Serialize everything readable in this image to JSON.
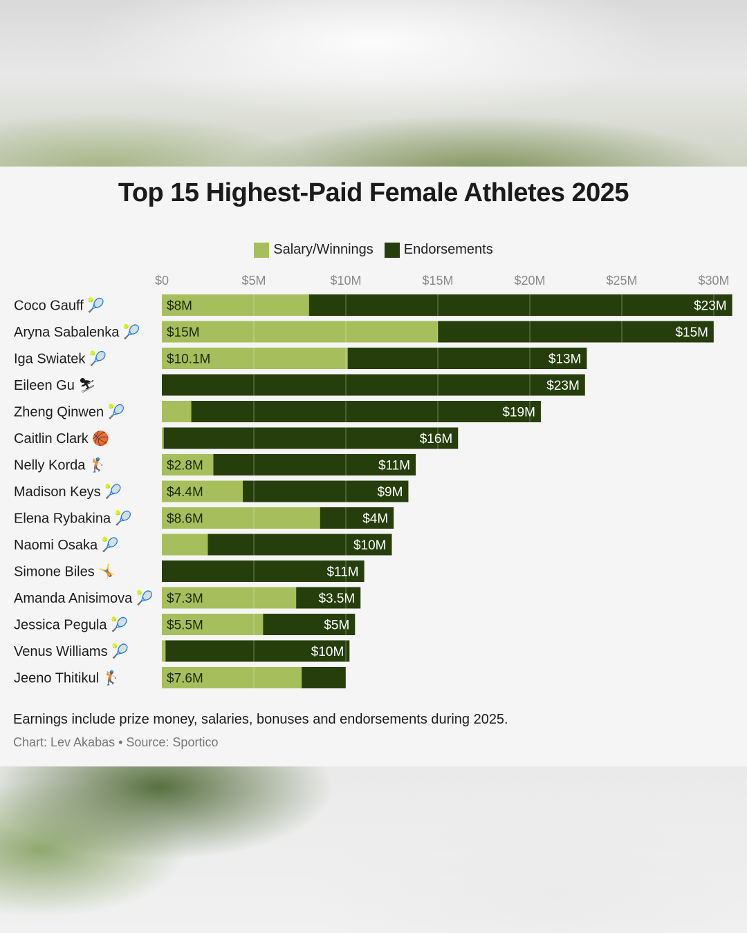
{
  "chart_data": {
    "type": "bar",
    "orientation": "horizontal",
    "stacked": true,
    "title": "Top 15 Highest-Paid Female Athletes 2025",
    "xlim": [
      0,
      31
    ],
    "ticks": [
      {
        "value": 0,
        "label": "$0"
      },
      {
        "value": 5,
        "label": "$5M"
      },
      {
        "value": 10,
        "label": "$10M"
      },
      {
        "value": 15,
        "label": "$15M"
      },
      {
        "value": 20,
        "label": "$20M"
      },
      {
        "value": 25,
        "label": "$25M"
      },
      {
        "value": 30,
        "label": "$30M"
      }
    ],
    "legend": [
      {
        "name": "Salary/Winnings",
        "color": "#a6bf5c"
      },
      {
        "name": "Endorsements",
        "color": "#263e0b"
      }
    ],
    "categories": [
      {
        "name": "Coco Gauff",
        "icon": "🎾",
        "salary": 8,
        "endorsements": 23,
        "salary_label": "$8M",
        "endorsement_label": "$23M"
      },
      {
        "name": "Aryna Sabalenka",
        "icon": "🎾",
        "salary": 15,
        "endorsements": 15,
        "salary_label": "$15M",
        "endorsement_label": "$15M"
      },
      {
        "name": "Iga Swiatek",
        "icon": "🎾",
        "salary": 10.1,
        "endorsements": 13,
        "salary_label": "$10.1M",
        "endorsement_label": "$13M"
      },
      {
        "name": "Eileen Gu",
        "icon": "⛷",
        "salary": 0,
        "endorsements": 23,
        "salary_label": "",
        "endorsement_label": "$23M"
      },
      {
        "name": "Zheng Qinwen",
        "icon": "🎾",
        "salary": 1.6,
        "endorsements": 19,
        "salary_label": "",
        "endorsement_label": "$19M"
      },
      {
        "name": "Caitlin Clark",
        "icon": "🏀",
        "salary": 0.1,
        "endorsements": 16,
        "salary_label": "",
        "endorsement_label": "$16M"
      },
      {
        "name": "Nelly Korda",
        "icon": "🏌",
        "salary": 2.8,
        "endorsements": 11,
        "salary_label": "$2.8M",
        "endorsement_label": "$11M"
      },
      {
        "name": "Madison Keys",
        "icon": "🎾",
        "salary": 4.4,
        "endorsements": 9,
        "salary_label": "$4.4M",
        "endorsement_label": "$9M"
      },
      {
        "name": "Elena Rybakina",
        "icon": "🎾",
        "salary": 8.6,
        "endorsements": 4,
        "salary_label": "$8.6M",
        "endorsement_label": "$4M"
      },
      {
        "name": "Naomi Osaka",
        "icon": "🎾",
        "salary": 2.5,
        "endorsements": 10,
        "salary_label": "",
        "endorsement_label": "$10M"
      },
      {
        "name": "Simone Biles",
        "icon": "🤸",
        "salary": 0,
        "endorsements": 11,
        "salary_label": "",
        "endorsement_label": "$11M"
      },
      {
        "name": "Amanda Anisimova",
        "icon": "🎾",
        "salary": 7.3,
        "endorsements": 3.5,
        "salary_label": "$7.3M",
        "endorsement_label": "$3.5M"
      },
      {
        "name": "Jessica Pegula",
        "icon": "🎾",
        "salary": 5.5,
        "endorsements": 5,
        "salary_label": "$5.5M",
        "endorsement_label": "$5M"
      },
      {
        "name": "Venus Williams",
        "icon": "🎾",
        "salary": 0.2,
        "endorsements": 10,
        "salary_label": "",
        "endorsement_label": "$10M"
      },
      {
        "name": "Jeeno Thitikul",
        "icon": "🏌",
        "salary": 7.6,
        "endorsements": 2.4,
        "salary_label": "$7.6M",
        "endorsement_label": ""
      }
    ],
    "footnote": "Earnings include prize money, salaries, bonuses and endorsements during 2025.",
    "credit": "Chart: Lev Akabas • Source: Sportico"
  }
}
